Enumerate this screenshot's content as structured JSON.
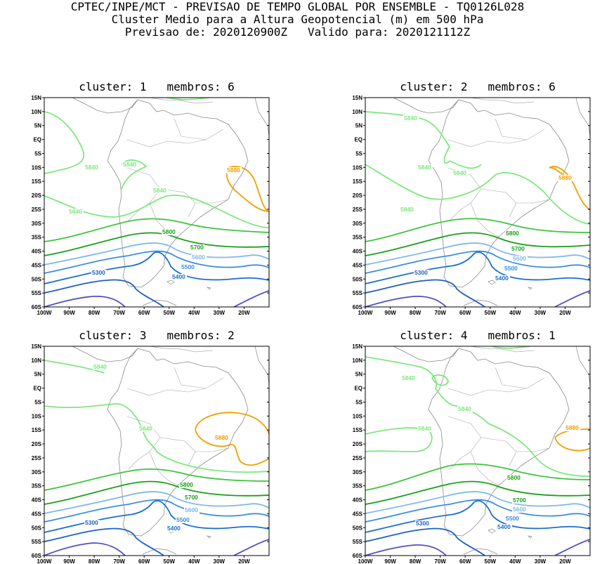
{
  "header": {
    "line1": "CPTEC/INPE/MCT - PREVISAO DE TEMPO GLOBAL POR ENSEMBLE - TQ0126L028",
    "line2": "Cluster Medio para a Altura Geopotencial (m) em 500 hPa",
    "line3": "Previsao de: 2020120900Z   Valido para: 2020121112Z"
  },
  "lat_ticks": [
    "15N",
    "10N",
    "5N",
    "EQ",
    "5S",
    "10S",
    "15S",
    "20S",
    "25S",
    "30S",
    "35S",
    "40S",
    "45S",
    "50S",
    "55S",
    "60S"
  ],
  "lon_ticks": [
    "100W",
    "90W",
    "80W",
    "70W",
    "60W",
    "50W",
    "40W",
    "30W",
    "20W"
  ],
  "colors": {
    "5300": "#1f5fc0",
    "5400": "#1a6fd0",
    "5500": "#3a8ee0",
    "5600": "#7db8ee",
    "5700": "#1aa01a",
    "5800": "#3ec43e",
    "5840": "#7ee87e",
    "5880": "#f0a000",
    "low": "#5050c0"
  },
  "panels": [
    {
      "title": "cluster: 1   membros: 6",
      "labels": {
        "l5840a": "5840",
        "l5840b": "5840",
        "l5840c": "5840",
        "l5840d": "5840",
        "l5880": "5880",
        "l5800": "5800",
        "l5700": "5700",
        "l5600": "5600",
        "l5500": "5500",
        "l5400": "5400",
        "l5300": "5300"
      }
    },
    {
      "title": "cluster: 2   membros: 6",
      "labels": {
        "l5840a": "5840",
        "l5840b": "5840",
        "l5840c": "5840",
        "l5840d": "5840",
        "l5880": "5880",
        "l5800": "5800",
        "l5700": "5700",
        "l5600": "5600",
        "l5500": "5500",
        "l5400": "5400",
        "l5300": "5300"
      }
    },
    {
      "title": "cluster: 3   membros: 2",
      "labels": {
        "l5840a": "5840",
        "l5840b": "5840",
        "l5880": "5880",
        "l5800": "5800",
        "l5700": "5700",
        "l5600": "5600",
        "l5500": "5500",
        "l5400": "5400",
        "l5300": "5300"
      }
    },
    {
      "title": "cluster: 4   membros: 1",
      "labels": {
        "l5840a": "5840",
        "l5840b": "5840",
        "l5840c": "5840",
        "l5880": "5880",
        "l5800": "5800",
        "l5700": "5700",
        "l5600": "5600",
        "l5500": "5500",
        "l5400": "5400",
        "l5300": "5300"
      }
    }
  ]
}
